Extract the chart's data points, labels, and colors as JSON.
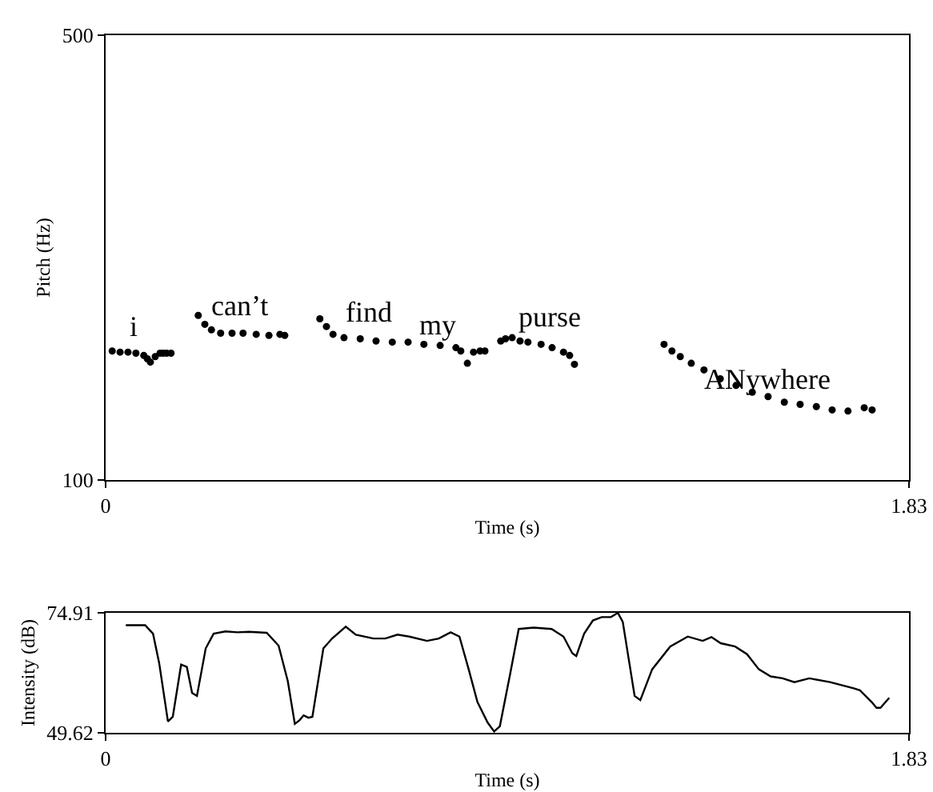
{
  "chart_data": [
    {
      "type": "scatter",
      "xlabel": "Time (s)",
      "ylabel": "Pitch (Hz)",
      "marker": "circle",
      "xlim": [
        0,
        1.83
      ],
      "xticks": [
        0,
        1.83
      ],
      "ylim": [
        100,
        500
      ],
      "yticks": [
        100,
        500
      ],
      "series": [
        {
          "color": "#000000",
          "x": [
            0.015,
            0.033,
            0.051,
            0.069,
            0.087,
            0.095,
            0.102,
            0.113,
            0.124,
            0.131,
            0.139,
            0.149,
            0.211,
            0.226,
            0.241,
            0.262,
            0.288,
            0.313,
            0.343,
            0.372,
            0.397,
            0.408,
            0.488,
            0.503,
            0.518,
            0.543,
            0.58,
            0.616,
            0.653,
            0.689,
            0.725,
            0.762,
            0.798,
            0.809,
            0.824,
            0.838,
            0.853,
            0.864,
            0.9,
            0.911,
            0.926,
            0.944,
            0.962,
            0.992,
            1.017,
            1.043,
            1.057,
            1.068,
            1.272,
            1.29,
            1.309,
            1.334,
            1.363,
            1.4,
            1.436,
            1.473,
            1.509,
            1.546,
            1.582,
            1.619,
            1.655,
            1.691,
            1.728,
            1.746
          ],
          "values": [
            216,
            215,
            215,
            214,
            212,
            209,
            206,
            211,
            214,
            214,
            214,
            214,
            248,
            240,
            235,
            232,
            232,
            232,
            231,
            230,
            231,
            230,
            245,
            238,
            231,
            228,
            227,
            225,
            224,
            224,
            222,
            221,
            219,
            216,
            205,
            215,
            216,
            216,
            225,
            227,
            228,
            225,
            224,
            222,
            219,
            215,
            212,
            204,
            222,
            216,
            211,
            205,
            199,
            191,
            185,
            179,
            175,
            170,
            168,
            166,
            163,
            162,
            165,
            163
          ]
        }
      ],
      "annotations": [
        "i",
        "can’t",
        "find",
        "my",
        "purse",
        "ANywhere"
      ]
    },
    {
      "type": "line",
      "xlabel": "Time (s)",
      "ylabel": "Intensity (dB)",
      "marker": "none",
      "line_style": "solid",
      "xlim": [
        0,
        1.83
      ],
      "xticks": [
        0,
        1.83
      ],
      "ylim": [
        49.62,
        74.91
      ],
      "yticks": [
        49.62,
        74.91
      ],
      "series": [
        {
          "color": "#000000",
          "x": [
            0.046,
            0.09,
            0.108,
            0.122,
            0.142,
            0.153,
            0.172,
            0.185,
            0.197,
            0.208,
            0.228,
            0.246,
            0.273,
            0.3,
            0.327,
            0.367,
            0.394,
            0.415,
            0.431,
            0.442,
            0.451,
            0.462,
            0.471,
            0.496,
            0.516,
            0.547,
            0.57,
            0.61,
            0.637,
            0.665,
            0.692,
            0.732,
            0.759,
            0.786,
            0.806,
            0.827,
            0.847,
            0.87,
            0.885,
            0.898,
            0.921,
            0.941,
            0.975,
            1.016,
            1.043,
            1.063,
            1.072,
            1.09,
            1.11,
            1.13,
            1.151,
            1.167,
            1.178,
            1.191,
            1.205,
            1.218,
            1.245,
            1.286,
            1.326,
            1.36,
            1.38,
            1.401,
            1.434,
            1.461,
            1.488,
            1.515,
            1.542,
            1.569,
            1.603,
            1.65,
            1.704,
            1.718,
            1.745,
            1.756,
            1.765,
            1.785
          ],
          "values": [
            72.3,
            72.3,
            70.5,
            64.3,
            52.0,
            53.0,
            64.0,
            63.5,
            58.0,
            57.4,
            67.4,
            70.5,
            71.0,
            70.8,
            70.9,
            70.7,
            68.0,
            60.5,
            51.5,
            52.3,
            53.3,
            52.8,
            53.0,
            67.4,
            69.5,
            72.0,
            70.3,
            69.5,
            69.5,
            70.3,
            69.9,
            69.0,
            69.5,
            70.8,
            69.9,
            63.0,
            56.1,
            51.8,
            49.9,
            51.0,
            61.8,
            71.5,
            71.8,
            71.5,
            69.9,
            66.4,
            65.8,
            70.5,
            73.3,
            74.0,
            74.0,
            74.9,
            73.0,
            65.5,
            57.4,
            56.5,
            63.0,
            67.8,
            69.9,
            69.0,
            69.8,
            68.5,
            67.8,
            66.2,
            63.0,
            61.5,
            61.1,
            60.3,
            61.1,
            60.3,
            59.0,
            58.6,
            56.1,
            54.9,
            54.9,
            57.0
          ]
        }
      ]
    }
  ]
}
